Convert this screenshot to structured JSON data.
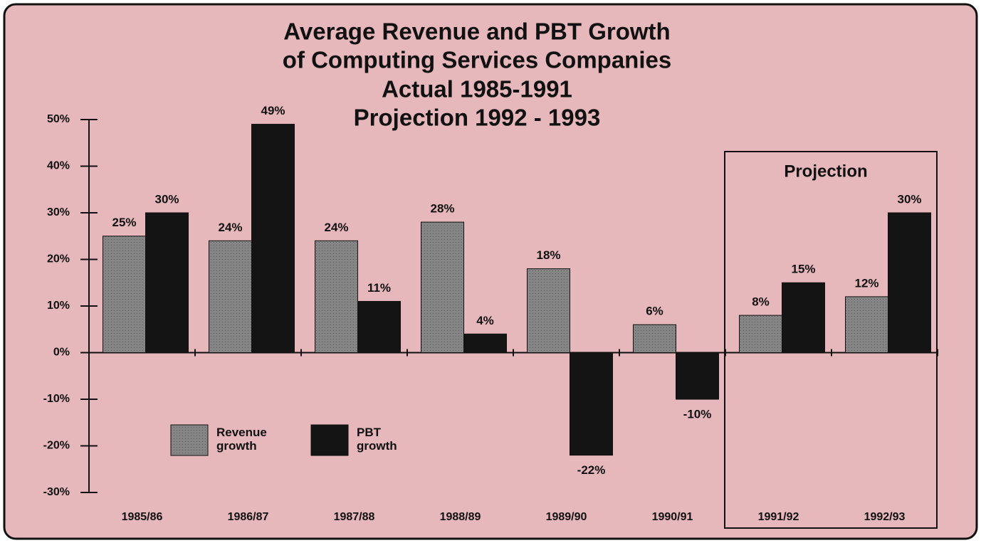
{
  "chart_data": {
    "type": "bar",
    "title": [
      "Average Revenue and PBT Growth",
      "of Computing Services Companies",
      "Actual 1985-1991",
      "Projection 1992 - 1993"
    ],
    "annotation": "Projection",
    "categories": [
      "1985/86",
      "1986/87",
      "1987/88",
      "1988/89",
      "1989/90",
      "1990/91",
      "1991/92",
      "1992/93"
    ],
    "series": [
      {
        "name": "Revenue growth",
        "color": "#858585",
        "values": [
          25,
          24,
          24,
          28,
          18,
          6,
          8,
          12
        ],
        "value_labels": [
          "25%",
          "24%",
          "24%",
          "28%",
          "18%",
          "6%",
          "8%",
          "12%"
        ]
      },
      {
        "name": "PBT growth",
        "color": "#141414",
        "values": [
          30,
          49,
          11,
          4,
          -22,
          -10,
          15,
          30
        ],
        "value_labels": [
          "30%",
          "49%",
          "11%",
          "4%",
          "-22%",
          "-10%",
          "15%",
          "30%"
        ]
      }
    ],
    "ylim": [
      -30,
      50
    ],
    "yticks": [
      {
        "value": -30,
        "label": "-30%"
      },
      {
        "value": -20,
        "label": "-20%"
      },
      {
        "value": -10,
        "label": "-10%"
      },
      {
        "value": 0,
        "label": "0%"
      },
      {
        "value": 10,
        "label": "10%"
      },
      {
        "value": 20,
        "label": "20%"
      },
      {
        "value": 30,
        "label": "30%"
      },
      {
        "value": 40,
        "label": "40%"
      },
      {
        "value": 50,
        "label": "50%"
      }
    ],
    "grid": false
  }
}
